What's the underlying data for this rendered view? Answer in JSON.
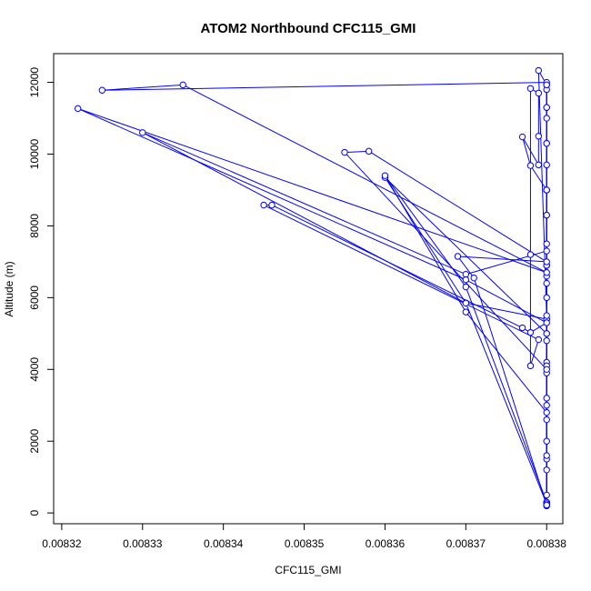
{
  "chart_data": {
    "type": "line",
    "title": "ATOM2 Northbound CFC115_GMI",
    "xlabel": "CFC115_GMI",
    "ylabel": "Altitude (m)",
    "xlim": [
      0.008319,
      0.008382
    ],
    "ylim": [
      -300,
      12800
    ],
    "x_ticks": [
      0.00832,
      0.00833,
      0.00834,
      0.00835,
      0.00836,
      0.00837,
      0.00838
    ],
    "x_tick_labels": [
      "0.00832",
      "0.00833",
      "0.00834",
      "0.00835",
      "0.00836",
      "0.00837",
      "0.00838"
    ],
    "y_ticks": [
      0,
      2000,
      4000,
      6000,
      8000,
      10000,
      12000
    ],
    "y_tick_labels": [
      "0",
      "2000",
      "4000",
      "6000",
      "8000",
      "10000",
      "12000"
    ],
    "grid": false,
    "series": [
      {
        "color": "#0000ff",
        "marker": "open-circle",
        "points": [
          [
            0.00838,
            200
          ],
          [
            0.00838,
            500
          ],
          [
            0.00838,
            1200
          ],
          [
            0.00838,
            2600
          ],
          [
            0.00838,
            3900
          ],
          [
            0.00838,
            5400
          ],
          [
            0.00838,
            6600
          ],
          [
            0.00838,
            7300
          ],
          [
            0.00837,
            6650
          ],
          [
            0.00833,
            10600
          ],
          [
            0.00837,
            5850
          ],
          [
            0.00838,
            5400
          ],
          [
            0.00838,
            4200
          ],
          [
            0.00838,
            3000
          ],
          [
            0.00838,
            1500
          ],
          [
            0.00838,
            300
          ],
          [
            0.00838,
            5000
          ],
          [
            0.00838,
            6900
          ],
          [
            0.00838,
            8300
          ],
          [
            0.00838,
            9700
          ],
          [
            0.00838,
            11300
          ],
          [
            0.00838,
            11930
          ],
          [
            0.00838,
            11000
          ],
          [
            0.00838,
            9000
          ],
          [
            0.00838,
            6400
          ],
          [
            0.00838,
            4800
          ],
          [
            0.00838,
            2000
          ],
          [
            0.00838,
            250
          ],
          [
            0.00837,
            5850
          ],
          [
            0.00836,
            9350
          ],
          [
            0.00838,
            5000
          ],
          [
            0.00838,
            4100
          ],
          [
            0.00838,
            3200
          ],
          [
            0.00838,
            1600
          ],
          [
            0.00838,
            300
          ],
          [
            0.00837,
            6300
          ],
          [
            0.00836,
            9400
          ],
          [
            0.00837,
            5600
          ],
          [
            0.00838,
            2800
          ],
          [
            0.00838,
            260
          ],
          [
            0.00838,
            6900
          ],
          [
            0.00838,
            7500
          ],
          [
            0.00838,
            9000
          ],
          [
            0.00838,
            10300
          ],
          [
            0.00838,
            11800
          ],
          [
            0.00838,
            12000
          ],
          [
            0.008325,
            11780
          ],
          [
            0.008335,
            11930
          ],
          [
            0.00838,
            6700
          ],
          [
            0.008322,
            11270
          ],
          [
            0.00837,
            6500
          ],
          [
            0.00838,
            5300
          ],
          [
            0.008378,
            5030
          ],
          [
            0.008377,
            5160
          ],
          [
            0.008346,
            8580
          ],
          [
            0.008345,
            8580
          ],
          [
            0.008379,
            4830
          ],
          [
            0.008378,
            4100
          ],
          [
            0.008378,
            7200
          ],
          [
            0.008378,
            11830
          ],
          [
            0.008379,
            11700
          ],
          [
            0.008379,
            10500
          ],
          [
            0.008379,
            9700
          ],
          [
            0.008377,
            10480
          ],
          [
            0.008378,
            9680
          ],
          [
            0.00838,
            9000
          ],
          [
            0.00838,
            200
          ],
          [
            0.00838,
            5500
          ],
          [
            0.008379,
            12330
          ],
          [
            0.00838,
            11930
          ],
          [
            0.00838,
            11300
          ],
          [
            0.00838,
            10300
          ],
          [
            0.00838,
            8300
          ],
          [
            0.00838,
            6000
          ],
          [
            0.00838,
            4000
          ],
          [
            0.008355,
            10050
          ],
          [
            0.008358,
            10080
          ],
          [
            0.00838,
            7000
          ],
          [
            0.008369,
            7150
          ],
          [
            0.008371,
            6550
          ],
          [
            0.00838,
            220
          ]
        ]
      }
    ]
  }
}
